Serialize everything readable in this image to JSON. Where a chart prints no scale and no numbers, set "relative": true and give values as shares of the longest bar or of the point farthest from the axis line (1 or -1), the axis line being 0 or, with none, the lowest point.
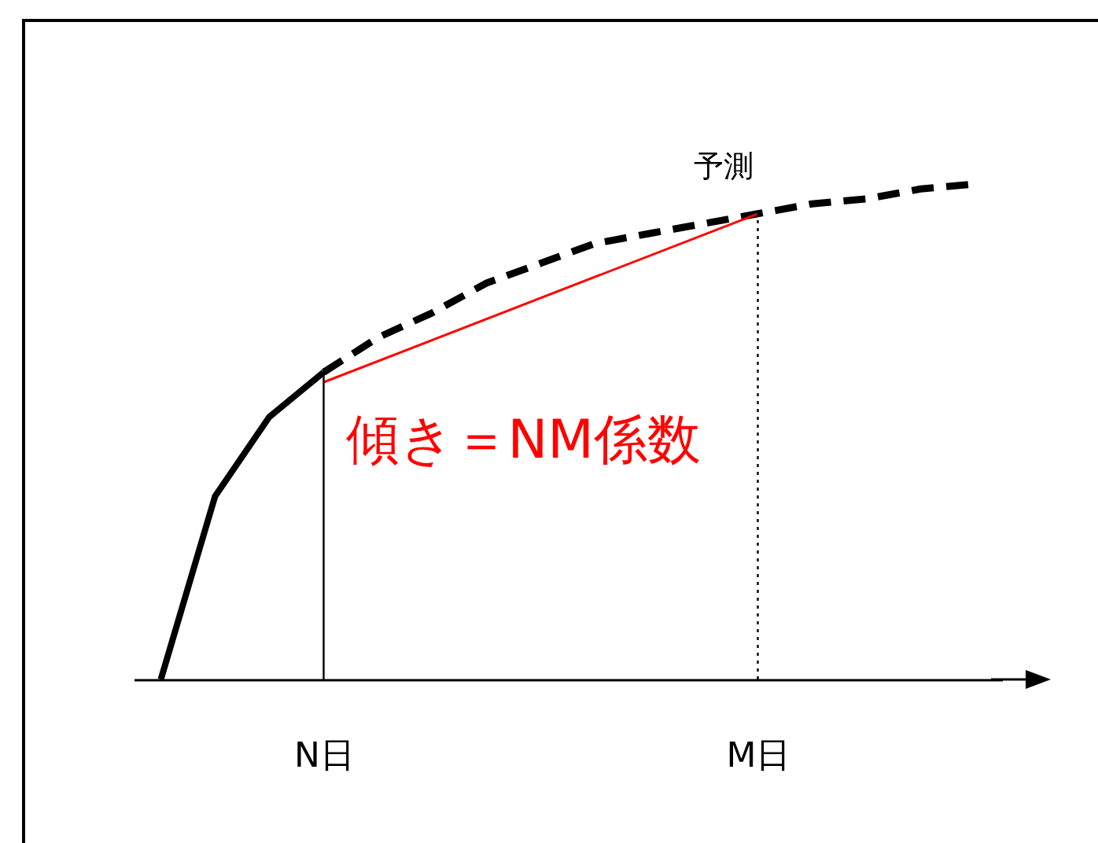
{
  "chart_data": {
    "type": "line",
    "relative": true,
    "categories": [
      null,
      null,
      null,
      "N日",
      null,
      null,
      null,
      null,
      null,
      null,
      null,
      "M日",
      null,
      null,
      null,
      null
    ],
    "series": [
      {
        "color": "#000000",
        "line_style": "solid",
        "values": [
          0,
          0.37,
          0.53,
          0.62,
          null,
          null,
          null,
          null,
          null,
          null,
          null,
          null,
          null,
          null,
          null,
          null
        ]
      },
      {
        "name": "予測",
        "color": "#000000",
        "line_style": "dashed",
        "values": [
          null,
          null,
          null,
          0.62,
          0.69,
          0.74,
          0.8,
          0.84,
          0.88,
          0.9,
          0.92,
          0.94,
          0.96,
          0.97,
          0.99,
          1
        ]
      },
      {
        "name": "傾き＝NM係数",
        "color": "#ff0000",
        "line_style": "solid",
        "values": [
          null,
          null,
          null,
          0.6,
          null,
          null,
          null,
          null,
          null,
          null,
          null,
          0.94,
          null,
          null,
          null,
          null
        ]
      }
    ],
    "ref_lines": [
      {
        "axis": "x",
        "value": "N日",
        "color": "#000000",
        "line_style": "solid"
      },
      {
        "axis": "x",
        "value": "M日",
        "color": "#000000",
        "line_style": "dotted"
      }
    ],
    "grid": false,
    "marker": "none"
  }
}
